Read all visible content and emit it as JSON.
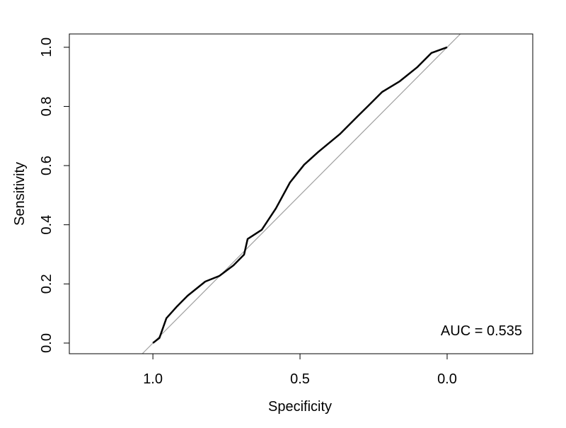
{
  "chart_data": {
    "type": "line",
    "title": "",
    "xlabel": "Specificity",
    "ylabel": "Sensitivity",
    "xlim": [
      1.284,
      -0.291
    ],
    "ylim": [
      -0.036,
      1.045
    ],
    "x_reversed": true,
    "grid": false,
    "xticks": [
      1.0,
      0.5,
      0.0
    ],
    "xtick_labels": [
      "1.0",
      "0.5",
      "0.0"
    ],
    "yticks": [
      0.0,
      0.2,
      0.4,
      0.6,
      0.8,
      1.0
    ],
    "ytick_labels": [
      "0.0",
      "0.2",
      "0.4",
      "0.6",
      "0.8",
      "1.0"
    ],
    "annotation": "AUC = 0.535",
    "reference_line": {
      "color": "#a0a0a0",
      "description_points": [
        [
          1,
          0
        ],
        [
          0,
          1
        ]
      ]
    },
    "series": [
      {
        "color": "#000000",
        "x": [
          1.0,
          0.978,
          0.954,
          0.918,
          0.882,
          0.822,
          0.774,
          0.726,
          0.69,
          0.678,
          0.63,
          0.582,
          0.534,
          0.486,
          0.438,
          0.365,
          0.305,
          0.269,
          0.221,
          0.161,
          0.101,
          0.053,
          0.0
        ],
        "y": [
          0.0,
          0.017,
          0.084,
          0.124,
          0.16,
          0.208,
          0.227,
          0.263,
          0.299,
          0.352,
          0.383,
          0.455,
          0.543,
          0.603,
          0.646,
          0.706,
          0.766,
          0.801,
          0.849,
          0.885,
          0.933,
          0.981,
          1.0
        ]
      }
    ]
  }
}
